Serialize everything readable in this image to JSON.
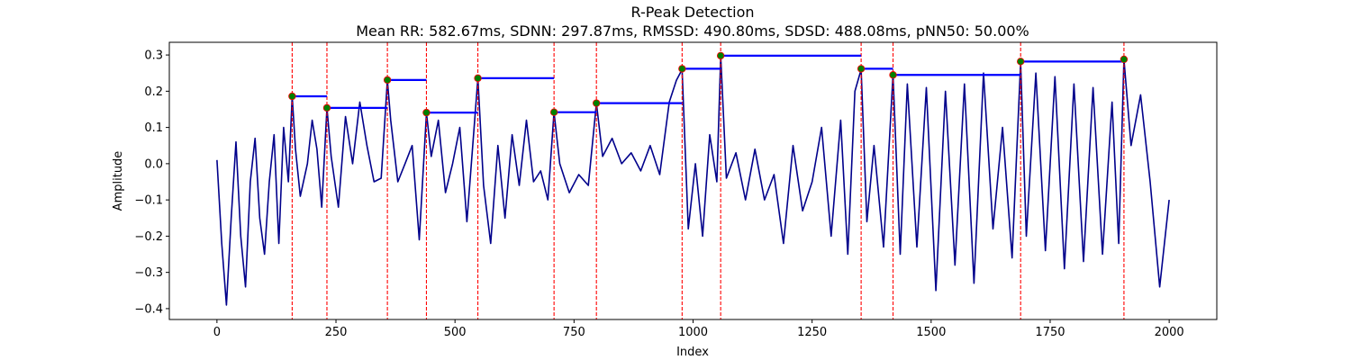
{
  "chart_data": {
    "type": "line",
    "title": "R-Peak Detection",
    "subtitle": "Mean RR: 582.67ms, SDNN: 297.87ms, RMSSD: 490.80ms, SDSD: 488.08ms, pNN50: 50.00%",
    "xlabel": "Index",
    "ylabel": "Amplitude",
    "xlim": [
      -100,
      2100
    ],
    "ylim": [
      -0.43,
      0.335
    ],
    "xticks": [
      0,
      250,
      500,
      750,
      1000,
      1250,
      1500,
      1750,
      2000
    ],
    "yticks": [
      -0.4,
      -0.3,
      -0.2,
      -0.1,
      0.0,
      0.1,
      0.2,
      0.3
    ],
    "ytick_labels": [
      "−0.4",
      "−0.3",
      "−0.2",
      "−0.1",
      "0.0",
      "0.1",
      "0.2",
      "0.3"
    ],
    "grid": false,
    "colors": {
      "signal": "#00008b",
      "peak_line": "#ff0000",
      "peak_marker": "#008000",
      "rr_bar": "#0000ff"
    },
    "signal": {
      "x": [
        0,
        10,
        20,
        30,
        40,
        50,
        60,
        70,
        80,
        90,
        100,
        110,
        120,
        130,
        140,
        150,
        158,
        165,
        175,
        190,
        200,
        210,
        220,
        231,
        240,
        255,
        270,
        285,
        300,
        315,
        330,
        345,
        358,
        365,
        380,
        395,
        410,
        425,
        440,
        450,
        465,
        480,
        495,
        510,
        525,
        548,
        560,
        575,
        590,
        605,
        620,
        635,
        650,
        665,
        680,
        695,
        708,
        720,
        740,
        760,
        780,
        797,
        810,
        830,
        850,
        870,
        890,
        910,
        930,
        950,
        965,
        977,
        990,
        1005,
        1020,
        1035,
        1050,
        1058,
        1070,
        1090,
        1110,
        1130,
        1150,
        1170,
        1190,
        1210,
        1230,
        1250,
        1270,
        1290,
        1310,
        1325,
        1340,
        1353,
        1365,
        1380,
        1400,
        1420,
        1435,
        1450,
        1470,
        1490,
        1510,
        1530,
        1550,
        1570,
        1590,
        1610,
        1630,
        1650,
        1670,
        1688,
        1700,
        1720,
        1740,
        1760,
        1780,
        1800,
        1820,
        1840,
        1860,
        1880,
        1894,
        1905,
        1920,
        1940,
        1960,
        1980,
        2000
      ],
      "y": [
        0.01,
        -0.22,
        -0.39,
        -0.15,
        0.06,
        -0.2,
        -0.34,
        -0.05,
        0.07,
        -0.15,
        -0.25,
        -0.05,
        0.08,
        -0.22,
        0.1,
        -0.05,
        0.186,
        0.04,
        -0.09,
        0.0,
        0.12,
        0.04,
        -0.12,
        0.154,
        0.02,
        -0.12,
        0.13,
        0.0,
        0.17,
        0.05,
        -0.05,
        -0.04,
        0.231,
        0.12,
        -0.05,
        0.0,
        0.05,
        -0.21,
        0.14,
        0.02,
        0.12,
        -0.08,
        0.0,
        0.1,
        -0.16,
        0.236,
        -0.06,
        -0.22,
        0.05,
        -0.15,
        0.08,
        -0.06,
        0.12,
        -0.05,
        -0.02,
        -0.1,
        0.142,
        0.0,
        -0.08,
        -0.03,
        -0.06,
        0.167,
        0.02,
        0.07,
        0.0,
        0.03,
        -0.02,
        0.05,
        -0.03,
        0.17,
        0.23,
        0.26,
        -0.18,
        0.0,
        -0.2,
        0.08,
        -0.05,
        0.298,
        -0.04,
        0.03,
        -0.1,
        0.04,
        -0.1,
        -0.03,
        -0.22,
        0.05,
        -0.13,
        -0.05,
        0.1,
        -0.2,
        0.12,
        -0.25,
        0.2,
        0.26,
        -0.16,
        0.05,
        -0.23,
        0.245,
        -0.25,
        0.22,
        -0.23,
        0.21,
        -0.35,
        0.2,
        -0.28,
        0.22,
        -0.33,
        0.25,
        -0.18,
        0.1,
        -0.26,
        0.28,
        -0.2,
        0.25,
        -0.24,
        0.24,
        -0.29,
        0.22,
        -0.27,
        0.21,
        -0.25,
        0.17,
        -0.22,
        0.288,
        0.05,
        0.19,
        -0.05,
        -0.34,
        -0.1
      ]
    },
    "peaks": {
      "x": [
        158,
        231,
        358,
        440,
        548,
        708,
        797,
        977,
        1058,
        1353,
        1420,
        1688,
        1905
      ],
      "y": [
        0.186,
        0.154,
        0.231,
        0.141,
        0.236,
        0.142,
        0.167,
        0.262,
        0.298,
        0.262,
        0.245,
        0.282,
        0.288
      ]
    },
    "rr_intervals": [
      {
        "x_start": 158,
        "x_end": 231,
        "y": 0.186
      },
      {
        "x_start": 231,
        "x_end": 358,
        "y": 0.154
      },
      {
        "x_start": 358,
        "x_end": 440,
        "y": 0.231
      },
      {
        "x_start": 440,
        "x_end": 548,
        "y": 0.141
      },
      {
        "x_start": 548,
        "x_end": 708,
        "y": 0.236
      },
      {
        "x_start": 708,
        "x_end": 797,
        "y": 0.142
      },
      {
        "x_start": 797,
        "x_end": 977,
        "y": 0.167
      },
      {
        "x_start": 977,
        "x_end": 1058,
        "y": 0.262
      },
      {
        "x_start": 1058,
        "x_end": 1353,
        "y": 0.298
      },
      {
        "x_start": 1353,
        "x_end": 1420,
        "y": 0.262
      },
      {
        "x_start": 1420,
        "x_end": 1688,
        "y": 0.245
      },
      {
        "x_start": 1688,
        "x_end": 1905,
        "y": 0.282
      }
    ]
  }
}
